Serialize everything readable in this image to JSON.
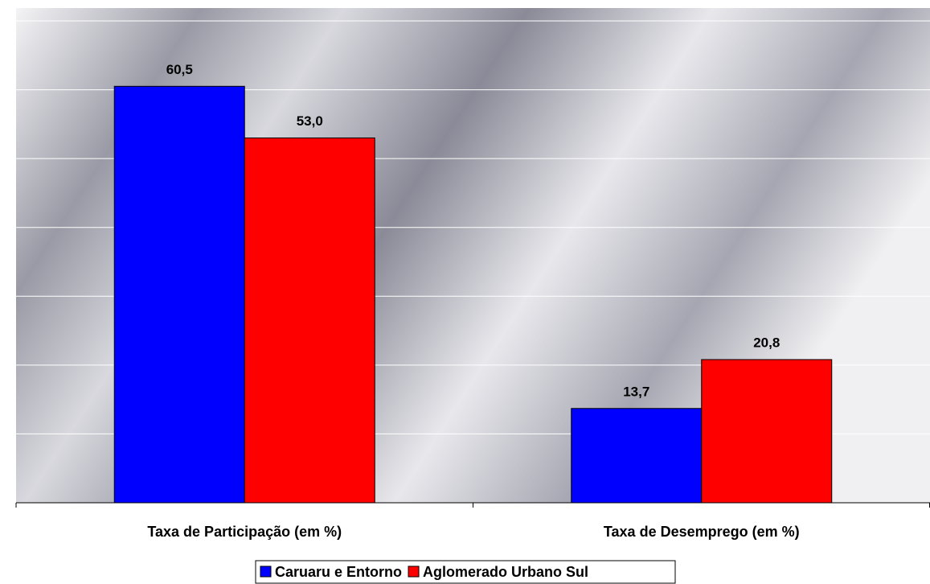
{
  "chart_data": {
    "type": "bar",
    "categories": [
      "Taxa de Participação (em %)",
      "Taxa de Desemprego (em %)"
    ],
    "series": [
      {
        "name": "Caruaru e Entorno",
        "color": "#0000ff",
        "values": [
          60.5,
          13.7
        ],
        "value_labels": [
          "60,5",
          "13,7"
        ]
      },
      {
        "name": "Aglomerado Urbano Sul",
        "color": "#ff0000",
        "values": [
          53.0,
          20.8
        ],
        "value_labels": [
          "53,0",
          "20,8"
        ]
      }
    ],
    "ylim": [
      0,
      70
    ],
    "yticks": [
      0,
      10,
      20,
      30,
      40,
      50,
      60,
      70
    ],
    "grid": true,
    "legend": "bottom"
  }
}
